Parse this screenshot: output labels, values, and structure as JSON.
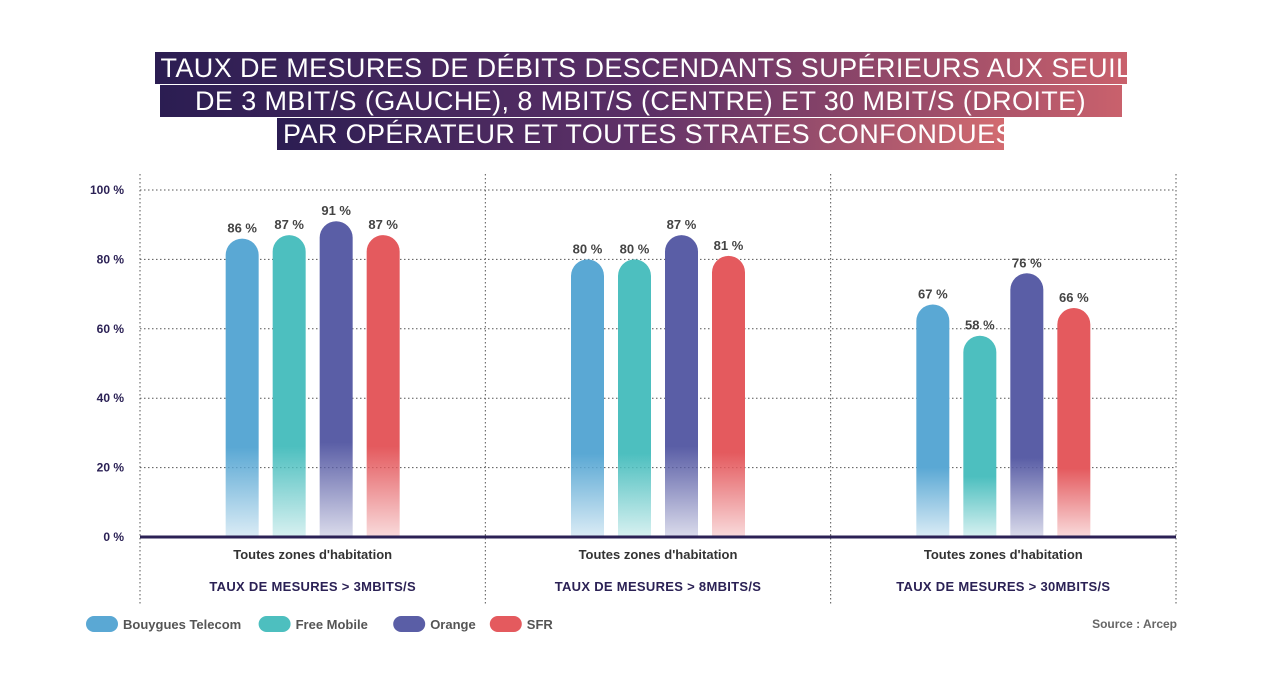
{
  "chart_data": {
    "type": "bar",
    "title_lines": [
      "TAUX DE MESURES DE DÉBITS DESCENDANTS SUPÉRIEURS AUX SEUILS",
      "DE 3 MBIT/S (GAUCHE), 8 MBIT/S (CENTRE) ET 30 MBIT/S (DROITE)",
      "PAR OPÉRATEUR ET TOUTES STRATES CONFONDUES"
    ],
    "ylim": [
      0,
      100
    ],
    "yticks": [
      "0 %",
      "20 %",
      "40 %",
      "60 %",
      "80 %",
      "100 %"
    ],
    "ytick_values": [
      0,
      20,
      40,
      60,
      80,
      100
    ],
    "grid": true,
    "groups": [
      {
        "category": "Toutes zones d'habitation",
        "subtitle": "TAUX DE MESURES > 3MBITS/S"
      },
      {
        "category": "Toutes zones d'habitation",
        "subtitle": "TAUX DE MESURES > 8MBITS/S"
      },
      {
        "category": "Toutes zones d'habitation",
        "subtitle": "TAUX DE MESURES > 30MBITS/S"
      }
    ],
    "series": [
      {
        "name": "Bouygues Telecom",
        "color": "#5aa8d4",
        "values": [
          86,
          80,
          67
        ],
        "labels": [
          "86 %",
          "80 %",
          "67 %"
        ]
      },
      {
        "name": "Free Mobile",
        "color": "#4dbfbf",
        "values": [
          87,
          80,
          58
        ],
        "labels": [
          "87 %",
          "80 %",
          "58 %"
        ]
      },
      {
        "name": "Orange",
        "color": "#5a5ea6",
        "values": [
          91,
          87,
          76
        ],
        "labels": [
          "91 %",
          "87 %",
          "76 %"
        ]
      },
      {
        "name": "SFR",
        "color": "#e45a5e",
        "values": [
          87,
          81,
          66
        ],
        "labels": [
          "87 %",
          "81 %",
          "66 %"
        ]
      }
    ],
    "legend_position": "bottom-left",
    "source": "Source : Arcep"
  }
}
